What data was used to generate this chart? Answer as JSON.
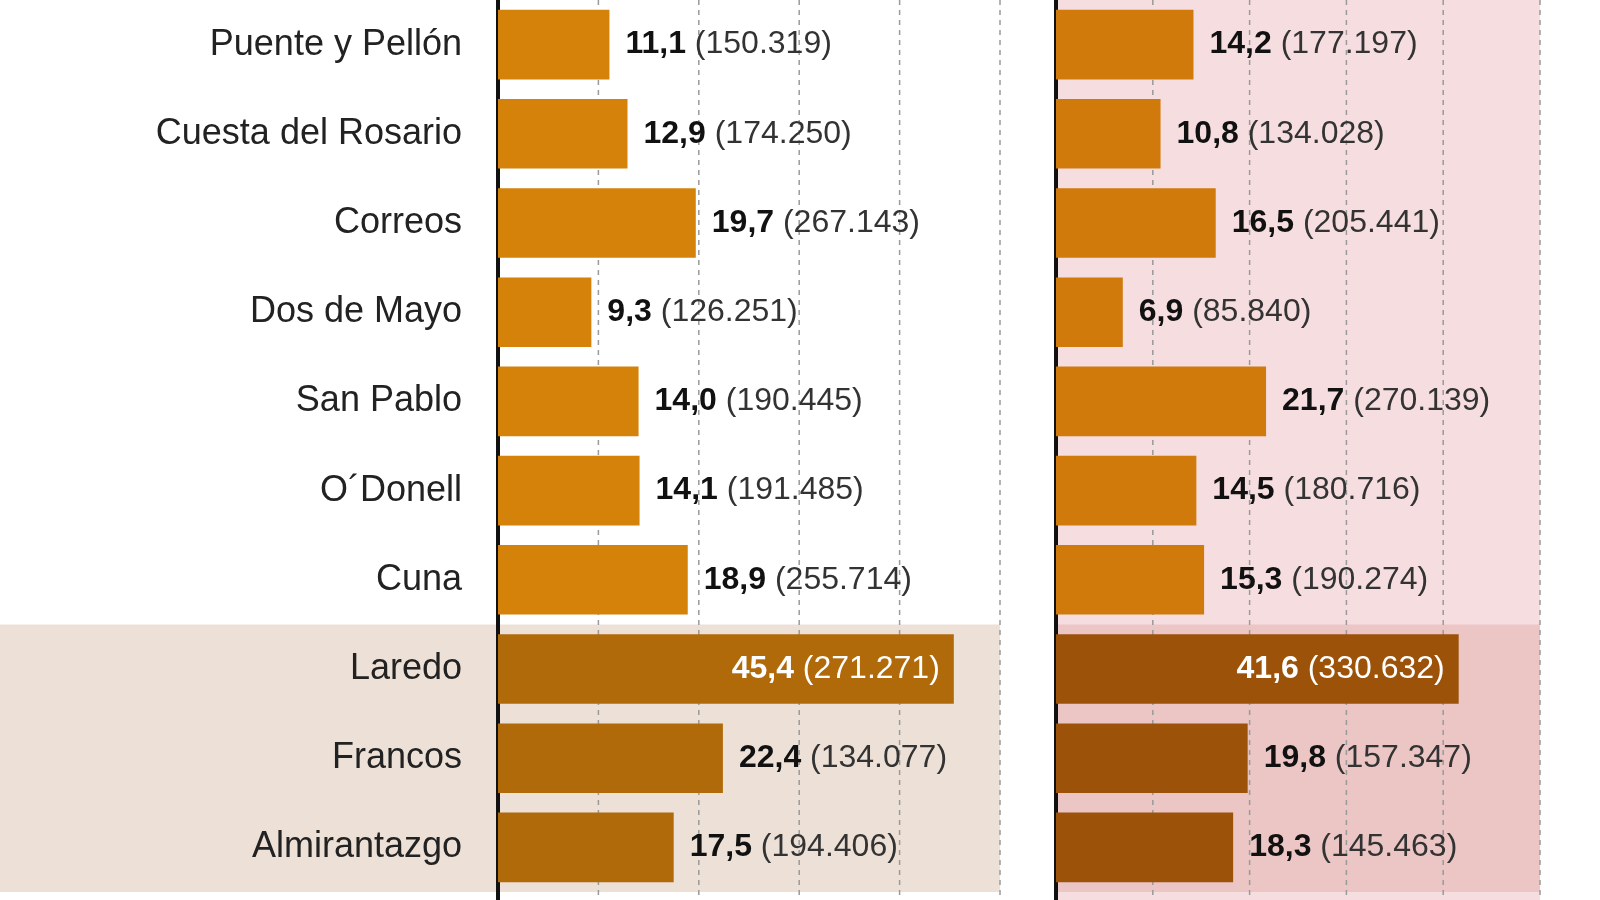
{
  "chart_data": [
    {
      "type": "bar",
      "orientation": "horizontal",
      "categories": [
        "Puente y Pellón",
        "Cuesta del Rosario",
        "Correos",
        "Dos de Mayo",
        "San Pablo",
        "O´Donell",
        "Cuna",
        "Laredo",
        "Francos",
        "Almirantazgo"
      ],
      "values": [
        11.1,
        12.9,
        19.7,
        9.3,
        14.0,
        14.1,
        18.9,
        45.4,
        22.4,
        17.5
      ],
      "colors": [
        "#d4820a",
        "#d4820a",
        "#d4820a",
        "#d4820a",
        "#d4820a",
        "#d4820a",
        "#d4820a",
        "#b06a0a",
        "#b06a0a",
        "#b06a0a"
      ],
      "value_labels": [
        "11,1 (150.319)",
        "12,9 (174.250)",
        "19,7 (267.143)",
        "9,3 (126.251)",
        "14,0 (190.445)",
        "14,1 (191.485)",
        "18,9 (255.714)",
        "45,4 (271.271)",
        "22,4 (134.077)",
        "17,5 (194.406)"
      ],
      "xlim": [
        0,
        50
      ],
      "xticks": [
        {
          "value": 10,
          "label": null
        },
        {
          "value": 20,
          "label": null
        },
        {
          "value": 30,
          "label": null
        },
        {
          "value": 40,
          "label": null
        },
        {
          "value": 50,
          "label": null
        }
      ],
      "grid": "x",
      "tick_labels": "y",
      "bands": [
        {
          "axis": "y",
          "from": "Laredo",
          "to": "Almirantazgo",
          "color": "#ede0d6"
        }
      ]
    },
    {
      "type": "bar",
      "orientation": "horizontal",
      "categories": [
        "Puente y Pellón",
        "Cuesta del Rosario",
        "Correos",
        "Dos de Mayo",
        "San Pablo",
        "O´Donell",
        "Cuna",
        "Laredo",
        "Francos",
        "Almirantazgo"
      ],
      "values": [
        14.2,
        10.8,
        16.5,
        6.9,
        21.7,
        14.5,
        15.3,
        41.6,
        19.8,
        18.3
      ],
      "colors": [
        "#cf7a0b",
        "#cf7a0b",
        "#cf7a0b",
        "#cf7a0b",
        "#cf7a0b",
        "#cf7a0b",
        "#cf7a0b",
        "#9c5208",
        "#9c5208",
        "#9c5208"
      ],
      "value_labels": [
        "14,2 (177.197)",
        "10,8 (134.028)",
        "16,5 (205.441)",
        "6,9 (85.840)",
        "21,7 (270.139)",
        "14,5 (180.716)",
        "15,3 (190.274)",
        "41,6 (330.632)",
        "19,8 (157.347)",
        "18,3 (145.463)"
      ],
      "xlim": [
        0,
        50
      ],
      "xticks": [
        {
          "value": 10,
          "label": null
        },
        {
          "value": 20,
          "label": null
        },
        {
          "value": 30,
          "label": null
        },
        {
          "value": 40,
          "label": null
        },
        {
          "value": 50,
          "label": null
        }
      ],
      "grid": "x",
      "tick_labels": false,
      "bands": [
        {
          "axis": "x",
          "from": 0,
          "to": 50,
          "color": "#f6dde0"
        },
        {
          "axis": "y",
          "from": "Laredo",
          "to": "Almirantazgo",
          "color": "#ebc6c5"
        }
      ]
    }
  ]
}
